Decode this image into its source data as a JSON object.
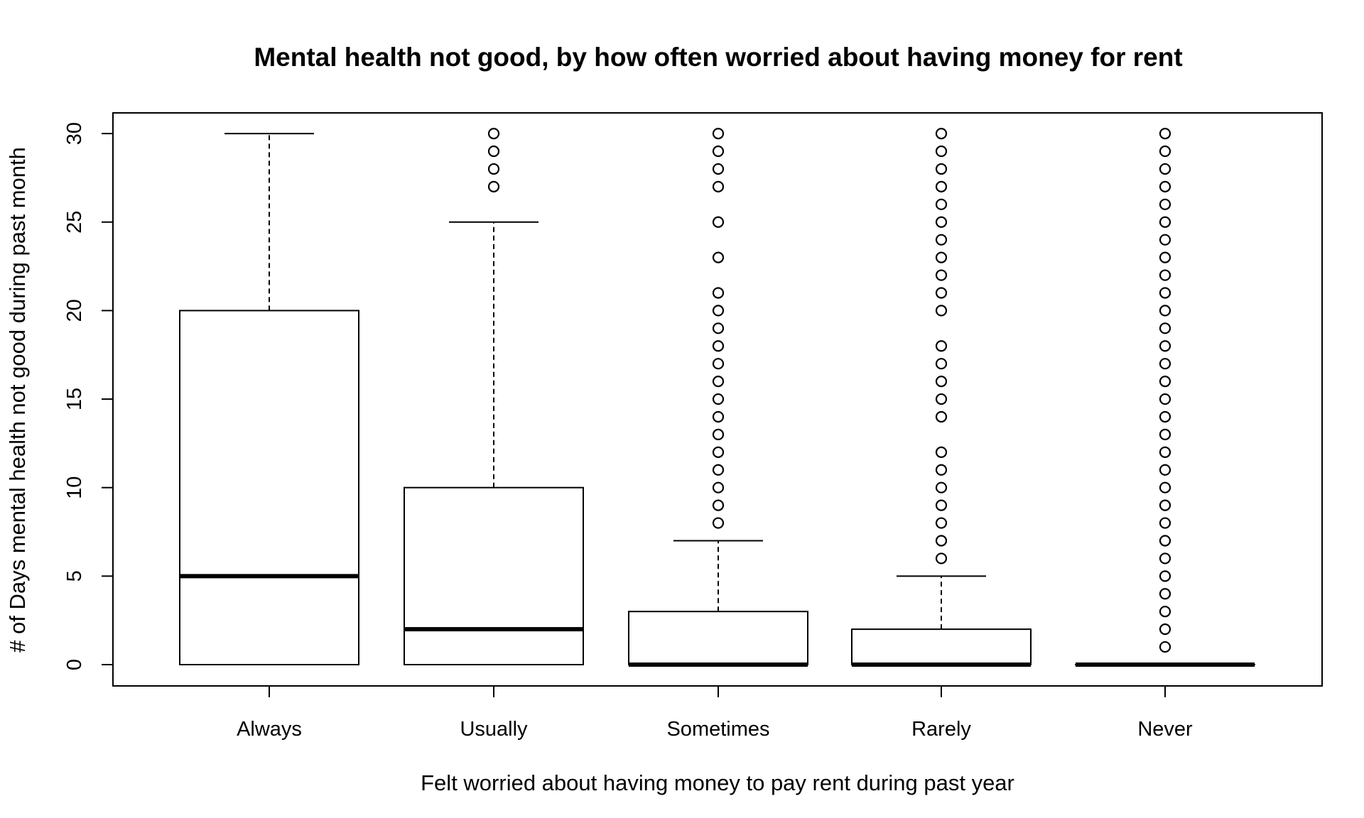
{
  "chart_data": {
    "type": "boxplot",
    "title": "Mental health not good, by how often worried about having money for rent",
    "xlabel": "Felt worried about having money to pay rent during past year",
    "ylabel": "# of Days mental health not good during past month",
    "ylim": [
      0,
      30
    ],
    "yticks": [
      0,
      5,
      10,
      15,
      20,
      25,
      30
    ],
    "categories": [
      "Always",
      "Usually",
      "Sometimes",
      "Rarely",
      "Never"
    ],
    "boxes": [
      {
        "category": "Always",
        "whisker_low": 0,
        "q1": 0,
        "median": 5,
        "q3": 20,
        "whisker_high": 30,
        "outliers": []
      },
      {
        "category": "Usually",
        "whisker_low": 0,
        "q1": 0,
        "median": 2,
        "q3": 10,
        "whisker_high": 25,
        "outliers": [
          27,
          28,
          29,
          30
        ]
      },
      {
        "category": "Sometimes",
        "whisker_low": 0,
        "q1": 0,
        "median": 0,
        "q3": 3,
        "whisker_high": 7,
        "outliers": [
          8,
          9,
          10,
          11,
          12,
          13,
          14,
          15,
          16,
          17,
          18,
          19,
          20,
          21,
          23,
          25,
          27,
          28,
          29,
          30
        ]
      },
      {
        "category": "Rarely",
        "whisker_low": 0,
        "q1": 0,
        "median": 0,
        "q3": 2,
        "whisker_high": 5,
        "outliers": [
          6,
          7,
          8,
          9,
          10,
          11,
          12,
          14,
          15,
          16,
          17,
          18,
          20,
          21,
          22,
          23,
          24,
          25,
          26,
          27,
          28,
          29,
          30
        ]
      },
      {
        "category": "Never",
        "whisker_low": 0,
        "q1": 0,
        "median": 0,
        "q3": 0,
        "whisker_high": 0,
        "outliers": [
          1,
          2,
          3,
          4,
          5,
          6,
          7,
          8,
          9,
          10,
          11,
          12,
          13,
          14,
          15,
          16,
          17,
          18,
          19,
          20,
          21,
          22,
          23,
          24,
          25,
          26,
          27,
          28,
          29,
          30
        ]
      }
    ],
    "grid": false,
    "legend": "none"
  }
}
